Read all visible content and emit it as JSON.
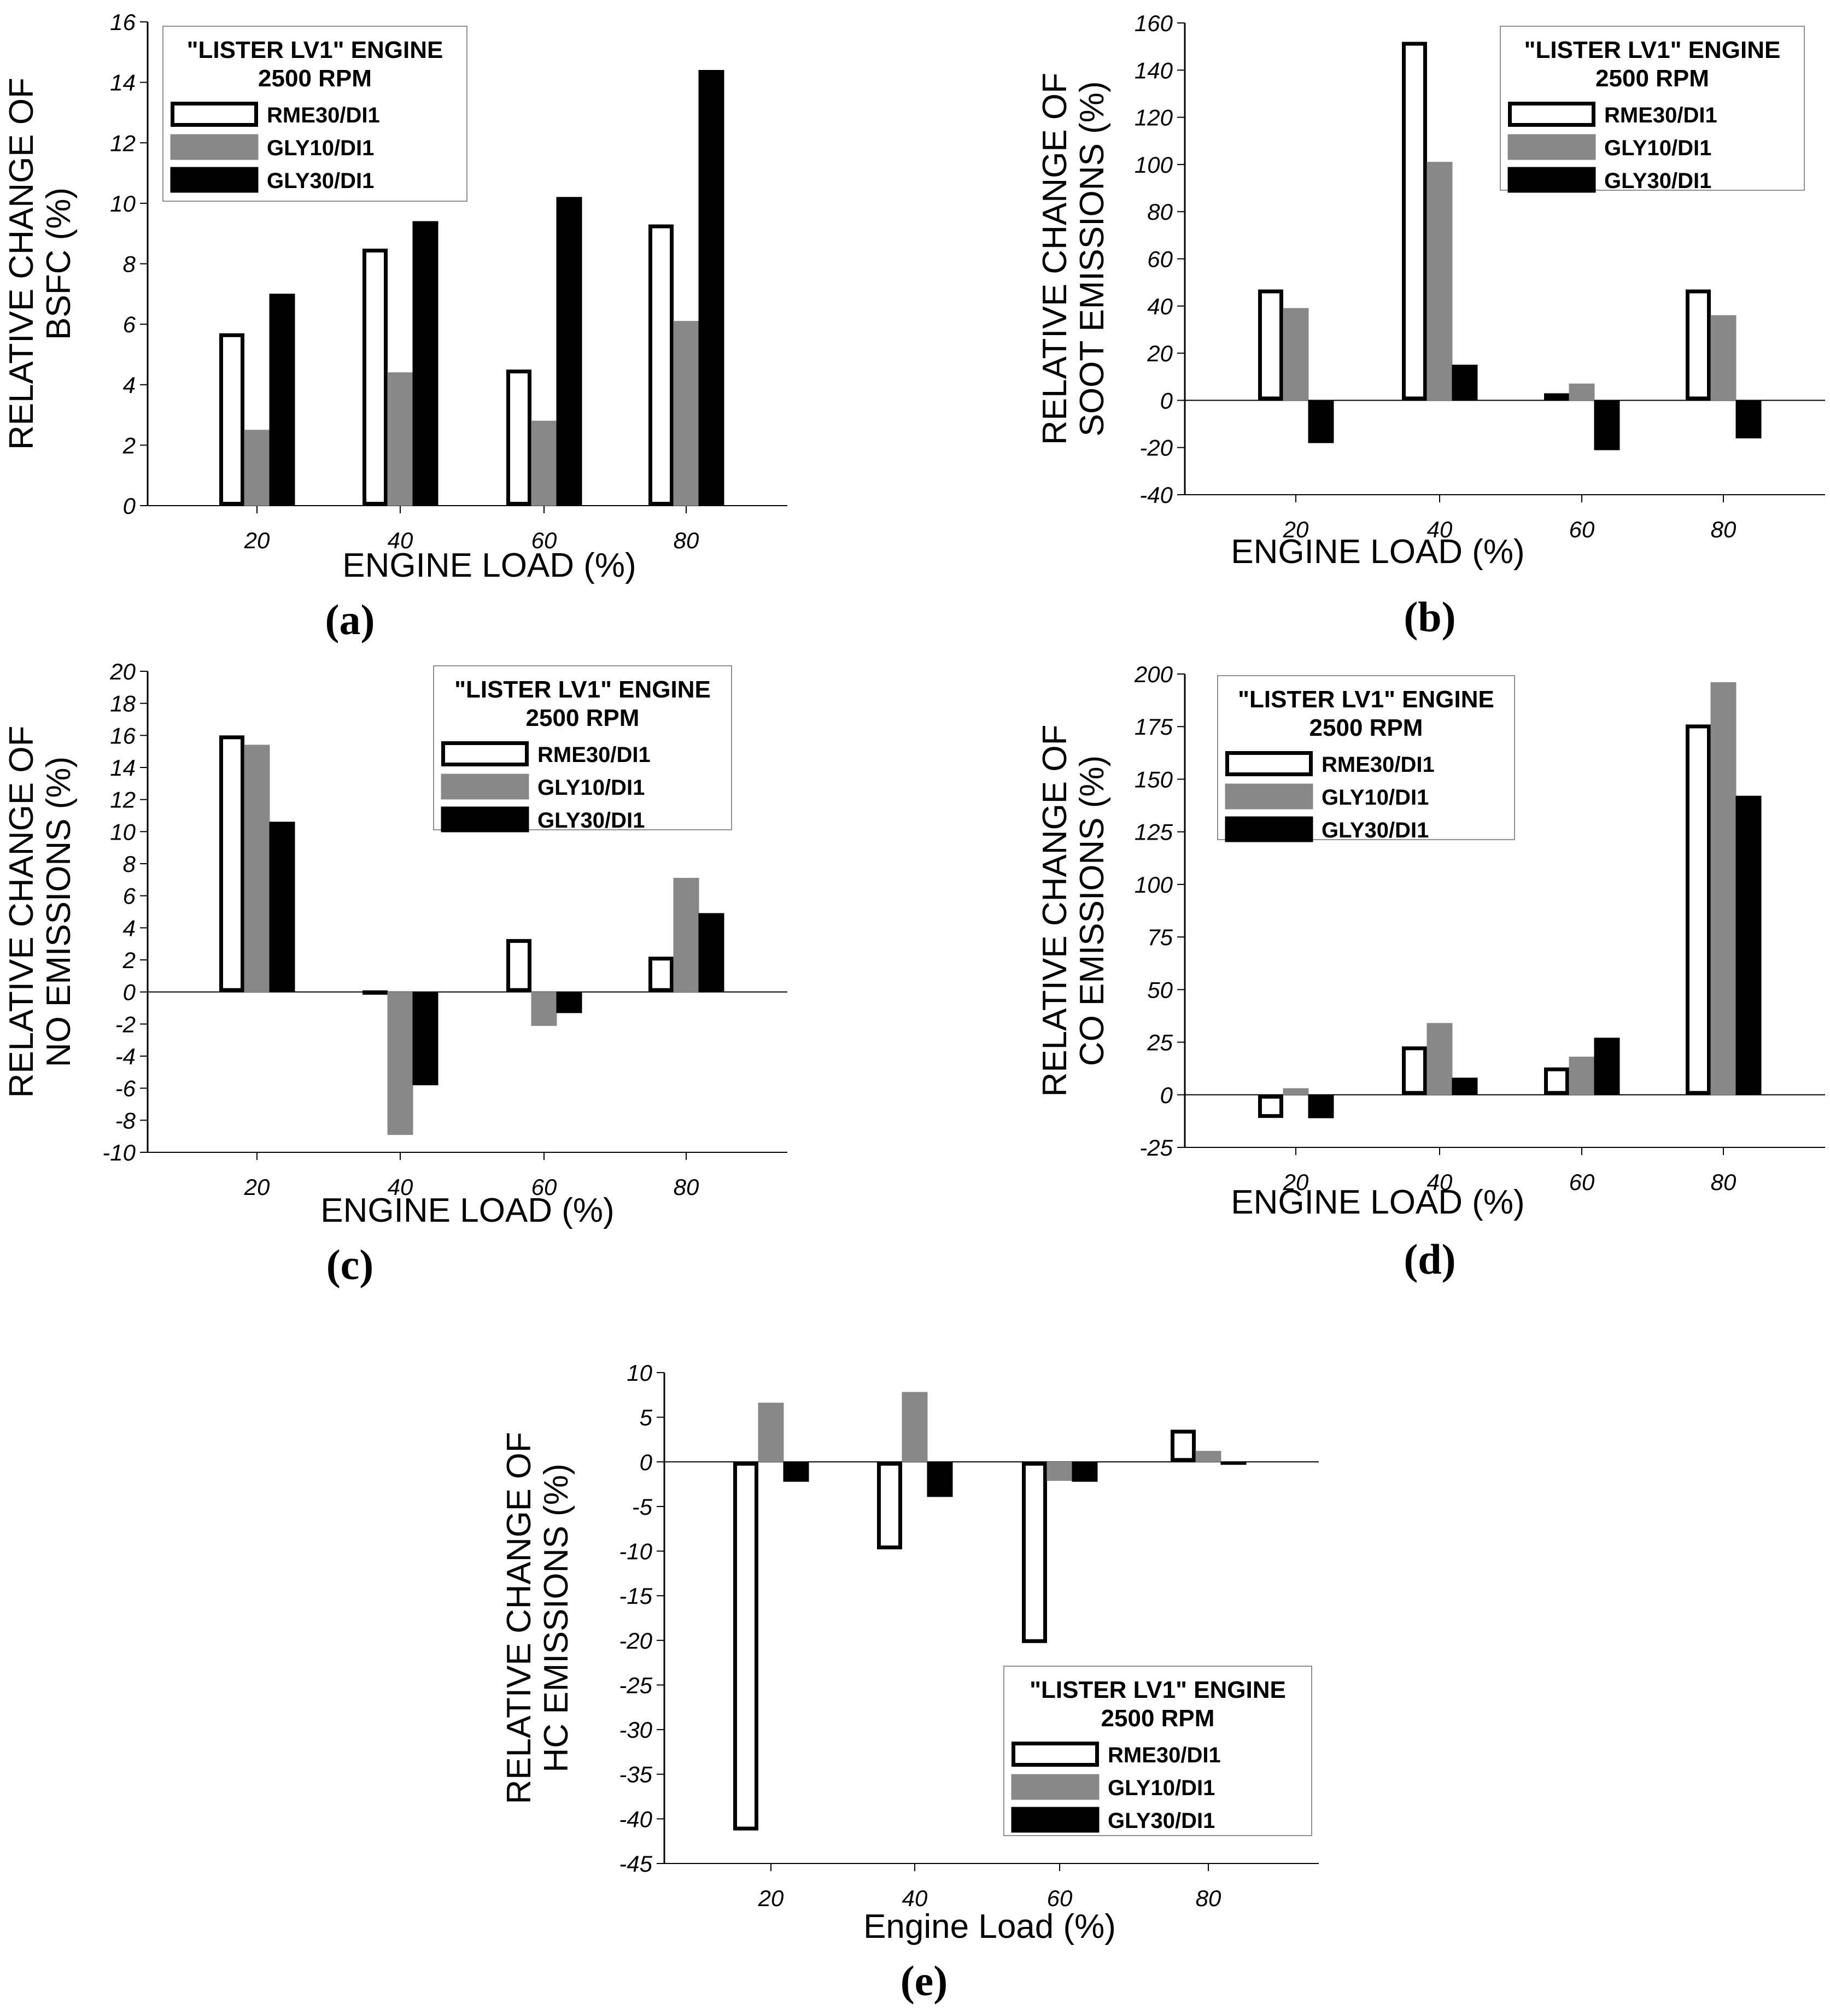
{
  "colors": {
    "RME30/DI1": "#ffffff",
    "GLY10/DI1": "#888888",
    "GLY30/DI1": "#000000",
    "axis": "#000000",
    "frame": "#909090"
  },
  "chart_data": [
    {
      "id": "a",
      "type": "bar",
      "caption": "(a)",
      "title": "",
      "xlabel": "ENGINE LOAD (%)",
      "ylabel": [
        "RELATIVE CHANGE OF",
        "BSFC (%)"
      ],
      "categories": [
        "20",
        "40",
        "60",
        "80"
      ],
      "ylim": [
        0,
        16
      ],
      "yticks": [
        0,
        2,
        4,
        6,
        8,
        10,
        12,
        14,
        16
      ],
      "legend": {
        "title": [
          "\"LISTER LV1\" ENGINE",
          "2500 RPM"
        ],
        "position": "top-left"
      },
      "series": [
        {
          "name": "RME30/DI1",
          "values": [
            5.7,
            8.5,
            4.5,
            9.3
          ]
        },
        {
          "name": "GLY10/DI1",
          "values": [
            2.5,
            4.4,
            2.8,
            6.1
          ]
        },
        {
          "name": "GLY30/DI1",
          "values": [
            7.0,
            9.4,
            10.2,
            14.4
          ]
        }
      ]
    },
    {
      "id": "b",
      "type": "bar",
      "caption": "(b)",
      "title": "",
      "xlabel": "ENGINE LOAD (%)",
      "ylabel": [
        "RELATIVE CHANGE OF",
        "SOOT EMISSIONS (%)"
      ],
      "categories": [
        "20",
        "40",
        "60",
        "80"
      ],
      "ylim": [
        -40,
        160
      ],
      "yticks": [
        -40,
        -20,
        0,
        20,
        40,
        60,
        80,
        100,
        120,
        140,
        160
      ],
      "legend": {
        "title": [
          "\"LISTER LV1\" ENGINE",
          "2500 RPM"
        ],
        "position": "top-right"
      },
      "series": [
        {
          "name": "RME30/DI1",
          "values": [
            47,
            152,
            3,
            47
          ]
        },
        {
          "name": "GLY10/DI1",
          "values": [
            39,
            101,
            7,
            36
          ]
        },
        {
          "name": "GLY30/DI1",
          "values": [
            -18,
            15,
            -21,
            -16
          ]
        }
      ]
    },
    {
      "id": "c",
      "type": "bar",
      "caption": "(c)",
      "title": "",
      "xlabel": "ENGINE LOAD (%)",
      "ylabel": [
        "RELATIVE CHANGE OF",
        "NO EMISSIONS (%)"
      ],
      "categories": [
        "20",
        "40",
        "60",
        "80"
      ],
      "ylim": [
        -10,
        20
      ],
      "yticks": [
        -10,
        -8,
        -6,
        -4,
        -2,
        0,
        2,
        4,
        6,
        8,
        10,
        12,
        14,
        16,
        18,
        20
      ],
      "legend": {
        "title": [
          "\"LISTER LV1\" ENGINE",
          "2500 RPM"
        ],
        "position": "top-right"
      },
      "series": [
        {
          "name": "RME30/DI1",
          "values": [
            16.0,
            0.1,
            3.3,
            2.2
          ]
        },
        {
          "name": "GLY10/DI1",
          "values": [
            15.4,
            -8.9,
            -2.1,
            7.1
          ]
        },
        {
          "name": "GLY30/DI1",
          "values": [
            10.6,
            -5.8,
            -1.3,
            4.9
          ]
        }
      ]
    },
    {
      "id": "d",
      "type": "bar",
      "caption": "(d)",
      "title": "",
      "xlabel": "ENGINE LOAD (%)",
      "ylabel": [
        "RELATIVE CHANGE OF",
        "CO EMISSIONS (%)"
      ],
      "categories": [
        "20",
        "40",
        "60",
        "80"
      ],
      "ylim": [
        -25,
        200
      ],
      "yticks": [
        -25,
        0,
        25,
        50,
        75,
        100,
        125,
        150,
        175,
        200
      ],
      "legend": {
        "title": [
          "\"LISTER LV1\" ENGINE",
          "2500 RPM"
        ],
        "position": "top-left"
      },
      "series": [
        {
          "name": "RME30/DI1",
          "values": [
            -11,
            23,
            13,
            176
          ]
        },
        {
          "name": "GLY10/DI1",
          "values": [
            3,
            34,
            18,
            196
          ]
        },
        {
          "name": "GLY30/DI1",
          "values": [
            -11,
            8,
            27,
            142
          ]
        }
      ]
    },
    {
      "id": "e",
      "type": "bar",
      "caption": "(e)",
      "title": "",
      "xlabel": "Engine Load (%)",
      "ylabel": [
        "RELATIVE CHANGE OF",
        "HC EMISSIONS (%)"
      ],
      "categories": [
        "20",
        "40",
        "60",
        "80"
      ],
      "ylim": [
        -45,
        10
      ],
      "yticks": [
        -45,
        -40,
        -35,
        -30,
        -25,
        -20,
        -15,
        -10,
        -5,
        0,
        5,
        10
      ],
      "legend": {
        "title": [
          "\"LISTER LV1\" ENGINE",
          "2500 RPM"
        ],
        "position": "bottom-right"
      },
      "series": [
        {
          "name": "RME30/DI1",
          "values": [
            -41.3,
            -9.8,
            -20.3,
            3.6
          ]
        },
        {
          "name": "GLY10/DI1",
          "values": [
            6.6,
            7.8,
            -2.1,
            1.2
          ]
        },
        {
          "name": "GLY30/DI1",
          "values": [
            -2.2,
            -3.9,
            -2.2,
            -0.3
          ]
        }
      ]
    }
  ]
}
